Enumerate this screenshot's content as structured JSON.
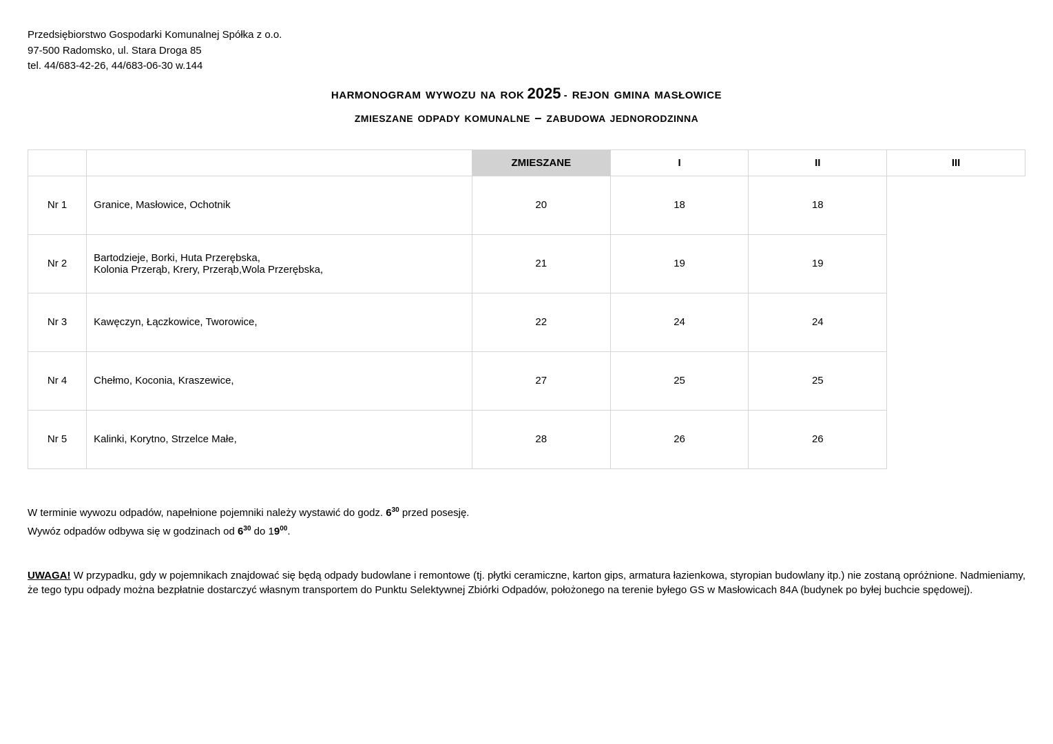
{
  "header": {
    "company": "Przedsiębiorstwo Gospodarki Komunalnej Spółka z o.o.",
    "address": "97-500 Radomsko, ul. Stara Droga 85",
    "phone": "tel. 44/683-42-26, 44/683-06-30 w.144"
  },
  "title": {
    "prefix": "HARMONOGRAM WYWOZU NA ROK",
    "year": "2025",
    "suffix": "- REJON GMINA MASŁOWICE"
  },
  "subtitle": {
    "left": "ZMIESZANE ODPADY KOMUNALNE",
    "dash": "–",
    "right": "ZABUDOWA JEDNORODZINNA"
  },
  "table": {
    "type_label": "ZMIESZANE",
    "months": [
      "I",
      "II",
      "III"
    ],
    "rows": [
      {
        "nr": "Nr 1",
        "loc": "Granice, Masłowice, Ochotnik",
        "vals": [
          "20",
          "18",
          "18"
        ]
      },
      {
        "nr": "Nr 2",
        "loc": "Bartodzieje, Borki, Huta Przerębska,\nKolonia Przerąb, Krery, Przerąb,Wola Przerębska,",
        "vals": [
          "21",
          "19",
          "19"
        ]
      },
      {
        "nr": "Nr 3",
        "loc": "Kawęczyn, Łączkowice, Tworowice,",
        "vals": [
          "22",
          "24",
          "24"
        ]
      },
      {
        "nr": "Nr 4",
        "loc": "Chełmo, Koconia, Kraszewice,",
        "vals": [
          "27",
          "25",
          "25"
        ]
      },
      {
        "nr": "Nr 5",
        "loc": "Kalinki, Korytno, Strzelce Małe,",
        "vals": [
          "28",
          "26",
          "26"
        ]
      }
    ]
  },
  "notes": {
    "line1_pre": "W terminie wywozu odpadów, napełnione pojemniki należy wystawić do godz. ",
    "line1_time_h": "6",
    "line1_time_m": "30",
    "line1_post": " przed posesję.",
    "line2_pre": "Wywóz odpadów odbywa się w godzinach od  ",
    "line2_t1_h": "6",
    "line2_t1_m": "30",
    "line2_mid": " do 1",
    "line2_t2_h": "9",
    "line2_t2_m": "00",
    "line2_post": "."
  },
  "warning": {
    "label": "UWAGA!",
    "text": " W przypadku, gdy w pojemnikach znajdować się będą odpady budowlane i remontowe (tj. płytki ceramiczne, karton gips, armatura łazienkowa, styropian budowlany itp.)  nie zostaną opróżnione. Nadmieniamy, że tego typu odpady można bezpłatnie dostarczyć własnym transportem do Punktu Selektywnej Zbiórki Odpadów, położonego na terenie byłego GS w Masłowicach 84A (budynek po byłej buchcie spędowej)."
  },
  "colors": {
    "border": "#d5d5d5",
    "type_bg": "#d2d2d2",
    "background": "#ffffff",
    "text": "#000000"
  }
}
